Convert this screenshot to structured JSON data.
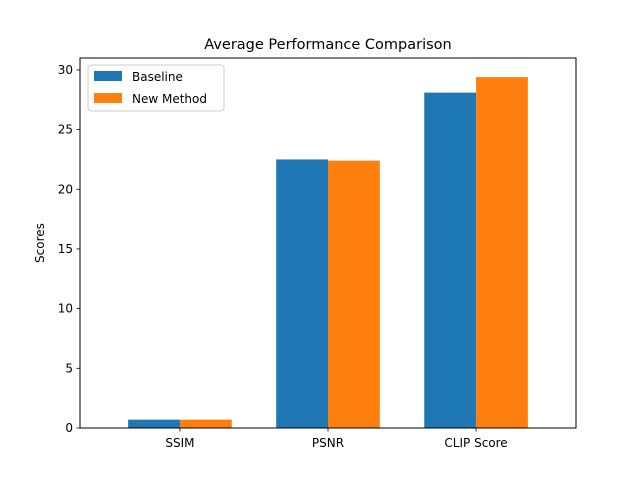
{
  "chart_data": {
    "type": "bar",
    "title": "Average Performance Comparison",
    "xlabel": "",
    "ylabel": "Scores",
    "categories": [
      "SSIM",
      "PSNR",
      "CLIP Score"
    ],
    "series": [
      {
        "name": "Baseline",
        "values": [
          0.7,
          22.5,
          28.1
        ],
        "color": "#1f77b4"
      },
      {
        "name": "New Method",
        "values": [
          0.7,
          22.4,
          29.4
        ],
        "color": "#ff7f0e"
      }
    ],
    "ylim": [
      0,
      31.0
    ],
    "yticks": [
      0,
      5,
      10,
      15,
      20,
      25,
      30
    ],
    "grid": false,
    "legend_position": "top-left"
  }
}
